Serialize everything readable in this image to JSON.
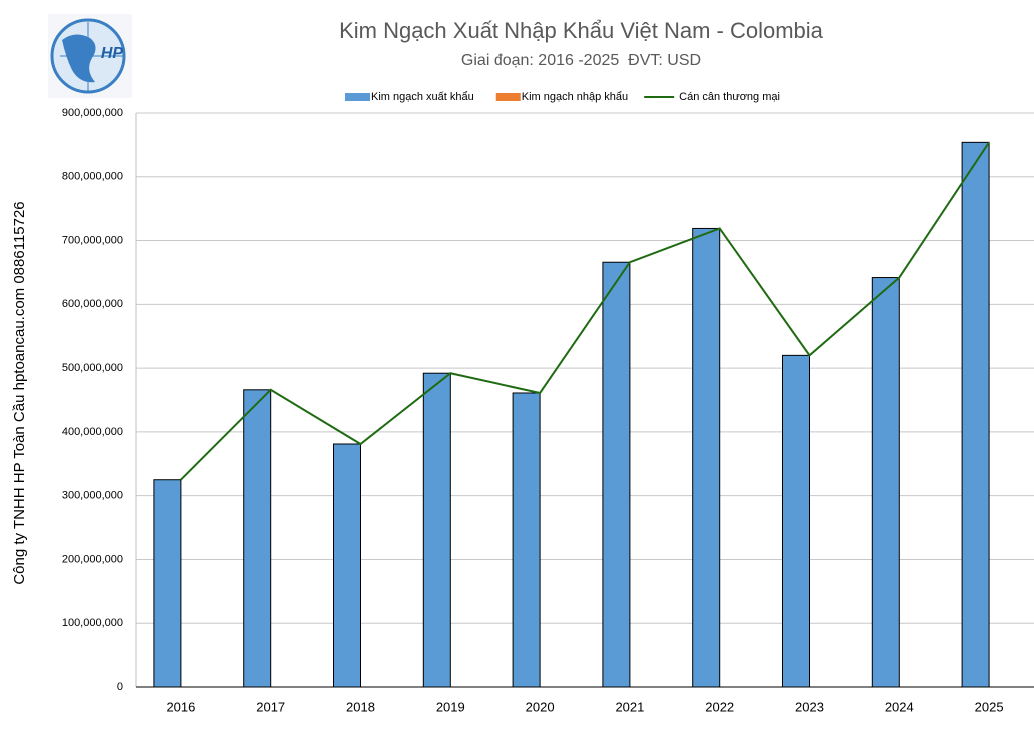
{
  "chart_data": {
    "type": "bar",
    "title": "Kim Ngạch Xuất Nhập Khẩu Việt Nam - Colombia",
    "subtitle": "Giai đoạn: 2016 -2025  ĐVT: USD",
    "annotations": [
      "Công ty TNHH HP Toàn Cầu hptoancau.com 0886115726"
    ],
    "logo_text": "HP",
    "categories": [
      "2016",
      "2017",
      "2018",
      "2019",
      "2020",
      "2021",
      "2022",
      "2023",
      "2024",
      "2025"
    ],
    "series": [
      {
        "name": "Kim ngạch xuất khẩu",
        "type": "bar",
        "color": "#5b9bd5",
        "values": [
          325000000,
          466000000,
          381000000,
          492000000,
          461000000,
          666000000,
          719000000,
          520000000,
          642000000,
          854000000
        ]
      },
      {
        "name": "Kim ngạch nhập khẩu",
        "type": "bar",
        "color": "#ed7d31",
        "values": [
          0,
          0,
          0,
          0,
          0,
          0,
          0,
          0,
          0,
          0
        ]
      },
      {
        "name": "Cán cân thương mại",
        "type": "line",
        "color": "#1e6b12",
        "values": [
          325000000,
          466000000,
          381000000,
          492000000,
          461000000,
          666000000,
          719000000,
          520000000,
          642000000,
          854000000
        ]
      }
    ],
    "ylim": [
      0,
      900000000
    ],
    "yticks": [
      0,
      {
        "value": 100000000,
        "label": "100,000,000"
      },
      {
        "value": 200000000,
        "label": "200,000,000"
      },
      {
        "value": 300000000,
        "label": "300,000,000"
      },
      {
        "value": 400000000,
        "label": "400,000,000"
      },
      {
        "value": 500000000,
        "label": "500,000,000"
      },
      {
        "value": 600000000,
        "label": "600,000,000"
      },
      {
        "value": 700000000,
        "label": "700,000,000"
      },
      {
        "value": 800000000,
        "label": "800,000,000"
      },
      {
        "value": 900000000,
        "label": "900,000,000"
      }
    ],
    "grid": true,
    "legend": "top"
  }
}
